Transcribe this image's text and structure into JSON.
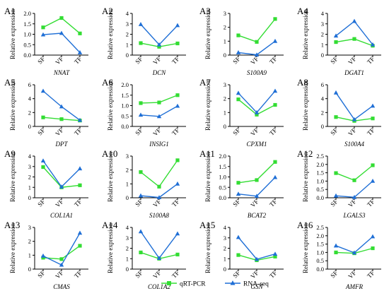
{
  "colors": {
    "qrt": "#33dd33",
    "rna": "#1f6fd6",
    "axis": "#000000"
  },
  "legend": {
    "items": [
      {
        "label": "qRT-PCR",
        "marker": "square",
        "color": "#33dd33"
      },
      {
        "label": "RNA-seq",
        "marker": "triangle",
        "color": "#1f6fd6"
      }
    ],
    "placement": "bottom-center"
  },
  "chart_data": [
    {
      "id": "A1",
      "gene": "NNAT",
      "ylabel": "Relative expression",
      "categories": [
        "SF",
        "VF",
        "TF"
      ],
      "ylim": [
        0,
        2.0
      ],
      "yticks": [
        "0.0",
        "0.5",
        "1.0",
        "1.5",
        "2.0"
      ],
      "series": [
        {
          "name": "qRT-PCR",
          "values": [
            1.33,
            1.78,
            1.04
          ]
        },
        {
          "name": "RNA-seq",
          "values": [
            0.98,
            1.05,
            0.12
          ]
        }
      ]
    },
    {
      "id": "A2",
      "gene": "DCN",
      "ylabel": "Relative expression",
      "categories": [
        "SF",
        "VF",
        "TF"
      ],
      "ylim": [
        0,
        4
      ],
      "yticks": [
        "0",
        "1",
        "2",
        "3",
        "4"
      ],
      "series": [
        {
          "name": "qRT-PCR",
          "values": [
            1.15,
            0.8,
            1.12
          ]
        },
        {
          "name": "RNA-seq",
          "values": [
            2.95,
            1.0,
            2.85
          ]
        }
      ]
    },
    {
      "id": "A3",
      "gene": "S100A9",
      "ylabel": "Relative expression",
      "categories": [
        "SF",
        "VF",
        "TF"
      ],
      "ylim": [
        0,
        3
      ],
      "yticks": [
        "0",
        "1",
        "2",
        "3"
      ],
      "series": [
        {
          "name": "qRT-PCR",
          "values": [
            1.42,
            0.95,
            2.6
          ]
        },
        {
          "name": "RNA-seq",
          "values": [
            0.18,
            0.02,
            1.0
          ]
        }
      ]
    },
    {
      "id": "A4",
      "gene": "DGAT1",
      "ylabel": "Relative expression",
      "categories": [
        "SF",
        "VF",
        "TF"
      ],
      "ylim": [
        0,
        4
      ],
      "yticks": [
        "0",
        "1",
        "2",
        "3",
        "4"
      ],
      "series": [
        {
          "name": "qRT-PCR",
          "values": [
            1.25,
            1.55,
            0.9
          ]
        },
        {
          "name": "RNA-seq",
          "values": [
            1.85,
            3.25,
            1.0
          ]
        }
      ]
    },
    {
      "id": "A5",
      "gene": "DPT",
      "ylabel": "Relative expression",
      "categories": [
        "SF",
        "VF",
        "TF"
      ],
      "ylim": [
        0,
        6
      ],
      "yticks": [
        "0",
        "2",
        "4",
        "6"
      ],
      "series": [
        {
          "name": "qRT-PCR",
          "values": [
            1.3,
            1.05,
            0.85
          ]
        },
        {
          "name": "RNA-seq",
          "values": [
            5.1,
            2.85,
            0.9
          ]
        }
      ]
    },
    {
      "id": "A6",
      "gene": "INSIG1",
      "ylabel": "Relative expression",
      "categories": [
        "SF",
        "VF",
        "TF"
      ],
      "ylim": [
        0,
        2.0
      ],
      "yticks": [
        "0.0",
        "0.5",
        "1.0",
        "1.5",
        "2.0"
      ],
      "series": [
        {
          "name": "qRT-PCR",
          "values": [
            1.12,
            1.15,
            1.5
          ]
        },
        {
          "name": "RNA-seq",
          "values": [
            0.55,
            0.48,
            0.98
          ]
        }
      ]
    },
    {
      "id": "A7",
      "gene": "CPXM1",
      "ylabel": "Relative expression",
      "categories": [
        "SF",
        "VF",
        "TF"
      ],
      "ylim": [
        0,
        3
      ],
      "yticks": [
        "0",
        "1",
        "2",
        "3"
      ],
      "series": [
        {
          "name": "qRT-PCR",
          "values": [
            1.95,
            0.85,
            1.55
          ]
        },
        {
          "name": "RNA-seq",
          "values": [
            2.4,
            1.0,
            2.55
          ]
        }
      ]
    },
    {
      "id": "A8",
      "gene": "S100A4",
      "ylabel": "Relative expression",
      "categories": [
        "SF",
        "VF",
        "TF"
      ],
      "ylim": [
        0,
        6
      ],
      "yticks": [
        "0",
        "2",
        "4",
        "6"
      ],
      "series": [
        {
          "name": "qRT-PCR",
          "values": [
            1.35,
            0.8,
            1.15
          ]
        },
        {
          "name": "RNA-seq",
          "values": [
            4.85,
            1.0,
            2.95
          ]
        }
      ]
    },
    {
      "id": "A9",
      "gene": "COL1A1",
      "ylabel": "Relative expression",
      "categories": [
        "SF",
        "VF",
        "TF"
      ],
      "ylim": [
        0,
        4
      ],
      "yticks": [
        "0",
        "1",
        "2",
        "3",
        "4"
      ],
      "series": [
        {
          "name": "qRT-PCR",
          "values": [
            2.95,
            1.0,
            1.2
          ]
        },
        {
          "name": "RNA-seq",
          "values": [
            3.55,
            1.05,
            2.8
          ]
        }
      ]
    },
    {
      "id": "A10",
      "gene": "S100A8",
      "ylabel": "Relative expression",
      "categories": [
        "SF",
        "VF",
        "TF"
      ],
      "ylim": [
        0,
        3
      ],
      "yticks": [
        "0",
        "1",
        "2",
        "3"
      ],
      "series": [
        {
          "name": "qRT-PCR",
          "values": [
            1.85,
            0.8,
            2.7
          ]
        },
        {
          "name": "RNA-seq",
          "values": [
            0.15,
            0.02,
            1.0
          ]
        }
      ]
    },
    {
      "id": "A11",
      "gene": "BCAT2",
      "ylabel": "Relative expression",
      "categories": [
        "SF",
        "VF",
        "TF"
      ],
      "ylim": [
        0,
        2.0
      ],
      "yticks": [
        "0.0",
        "0.5",
        "1.0",
        "1.5",
        "2.0"
      ],
      "series": [
        {
          "name": "qRT-PCR",
          "values": [
            0.72,
            0.85,
            1.72
          ]
        },
        {
          "name": "RNA-seq",
          "values": [
            0.18,
            0.08,
            0.98
          ]
        }
      ]
    },
    {
      "id": "A12",
      "gene": "LGALS3",
      "ylabel": "Relative expression",
      "categories": [
        "SF",
        "VF",
        "TF"
      ],
      "ylim": [
        0,
        2.5
      ],
      "yticks": [
        "0.0",
        "0.5",
        "1.0",
        "1.5",
        "2.0",
        "2.5"
      ],
      "series": [
        {
          "name": "qRT-PCR",
          "values": [
            1.48,
            1.05,
            1.95
          ]
        },
        {
          "name": "RNA-seq",
          "values": [
            0.12,
            0.03,
            1.0
          ]
        }
      ]
    },
    {
      "id": "A13",
      "gene": "CMAS",
      "ylabel": "Relative expression",
      "categories": [
        "SF",
        "VF",
        "TF"
      ],
      "ylim": [
        0,
        3
      ],
      "yticks": [
        "0",
        "1",
        "2",
        "3"
      ],
      "series": [
        {
          "name": "qRT-PCR",
          "values": [
            0.82,
            0.72,
            1.68
          ]
        },
        {
          "name": "RNA-seq",
          "values": [
            0.95,
            0.3,
            2.6
          ]
        }
      ]
    },
    {
      "id": "A14",
      "gene": "COL1A2",
      "ylabel": "Relative expression",
      "categories": [
        "SF",
        "VF",
        "TF"
      ],
      "ylim": [
        0,
        4
      ],
      "yticks": [
        "0",
        "1",
        "2",
        "3",
        "4"
      ],
      "series": [
        {
          "name": "qRT-PCR",
          "values": [
            1.6,
            1.0,
            1.4
          ]
        },
        {
          "name": "RNA-seq",
          "values": [
            3.6,
            1.05,
            3.4
          ]
        }
      ]
    },
    {
      "id": "A15",
      "gene": "GSN",
      "ylabel": "Relative expression",
      "categories": [
        "SF",
        "VF",
        "TF"
      ],
      "ylim": [
        0,
        4
      ],
      "yticks": [
        "0",
        "1",
        "2",
        "3",
        "4"
      ],
      "series": [
        {
          "name": "qRT-PCR",
          "values": [
            1.35,
            0.85,
            1.2
          ]
        },
        {
          "name": "RNA-seq",
          "values": [
            3.05,
            0.95,
            1.45
          ]
        }
      ]
    },
    {
      "id": "A16",
      "gene": "AMFR",
      "ylabel": "Relative expression",
      "categories": [
        "SF",
        "VF",
        "TF"
      ],
      "ylim": [
        0,
        2.5
      ],
      "yticks": [
        "0.0",
        "0.5",
        "1.0",
        "1.5",
        "2.0",
        "2.5"
      ],
      "series": [
        {
          "name": "qRT-PCR",
          "values": [
            1.0,
            0.95,
            1.25
          ]
        },
        {
          "name": "RNA-seq",
          "values": [
            1.4,
            0.98,
            1.95
          ]
        }
      ]
    }
  ]
}
